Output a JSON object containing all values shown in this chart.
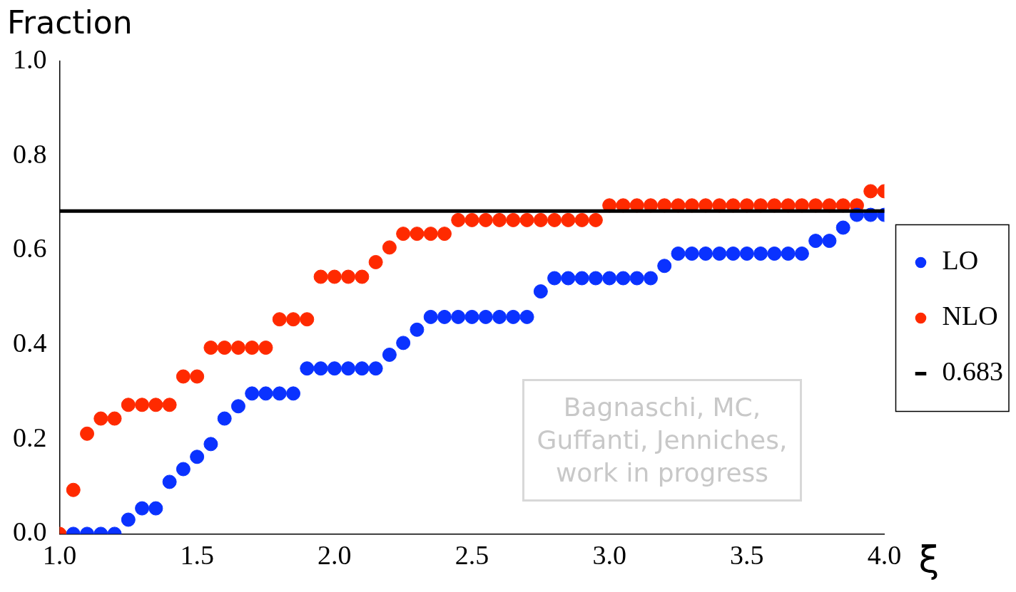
{
  "chart_data": {
    "type": "scatter",
    "xlabel": "ξ",
    "ylabel": "Fraction",
    "x": [
      1.0,
      1.05,
      1.1,
      1.15,
      1.2,
      1.25,
      1.3,
      1.35,
      1.4,
      1.45,
      1.5,
      1.55,
      1.6,
      1.65,
      1.7,
      1.75,
      1.8,
      1.85,
      1.9,
      1.95,
      2.0,
      2.05,
      2.1,
      2.15,
      2.2,
      2.25,
      2.3,
      2.35,
      2.4,
      2.45,
      2.5,
      2.55,
      2.6,
      2.65,
      2.7,
      2.75,
      2.8,
      2.85,
      2.9,
      2.95,
      3.0,
      3.05,
      3.1,
      3.15,
      3.2,
      3.25,
      3.3,
      3.35,
      3.4,
      3.45,
      3.5,
      3.55,
      3.6,
      3.65,
      3.7,
      3.75,
      3.8,
      3.85,
      3.9,
      3.95,
      4.0
    ],
    "series": [
      {
        "name": "LO",
        "color": "#0a32ff",
        "values": [
          null,
          0,
          0,
          0,
          0,
          0.03,
          0.054,
          0.054,
          0.11,
          0.137,
          0.163,
          0.19,
          0.244,
          0.27,
          0.297,
          0.297,
          0.297,
          0.297,
          0.35,
          0.35,
          0.35,
          0.35,
          0.35,
          0.35,
          0.379,
          0.404,
          0.432,
          0.459,
          0.459,
          0.459,
          0.459,
          0.459,
          0.459,
          0.459,
          0.459,
          0.513,
          0.541,
          0.541,
          0.541,
          0.541,
          0.541,
          0.541,
          0.541,
          0.541,
          0.567,
          0.593,
          0.593,
          0.593,
          0.593,
          0.593,
          0.593,
          0.593,
          0.593,
          0.593,
          0.593,
          0.62,
          0.62,
          0.648,
          0.675,
          0.675,
          0.675
        ]
      },
      {
        "name": "NLO",
        "color": "#ff2a00",
        "values": [
          0,
          0.093,
          0.212,
          0.244,
          0.244,
          0.273,
          0.273,
          0.273,
          0.273,
          0.333,
          0.333,
          0.394,
          0.394,
          0.394,
          0.394,
          0.394,
          0.454,
          0.454,
          0.454,
          0.544,
          0.544,
          0.544,
          0.544,
          0.575,
          0.606,
          0.635,
          0.635,
          0.635,
          0.635,
          0.664,
          0.664,
          0.664,
          0.664,
          0.664,
          0.664,
          0.664,
          0.664,
          0.664,
          0.664,
          0.664,
          0.695,
          0.695,
          0.695,
          0.695,
          0.695,
          0.695,
          0.695,
          0.695,
          0.695,
          0.695,
          0.695,
          0.695,
          0.695,
          0.695,
          0.695,
          0.695,
          0.695,
          0.695,
          0.695,
          0.725,
          0.725
        ]
      }
    ],
    "ref_lines": [
      {
        "axis": "y",
        "value": 0.683,
        "label": "0.683",
        "color": "#000000"
      }
    ],
    "xlim": [
      1.0,
      4.0
    ],
    "ylim": [
      0.0,
      1.0
    ],
    "xticks": [
      {
        "value": 1,
        "label": "1.0"
      },
      1.5,
      {
        "value": 2,
        "label": "2.0"
      },
      2.5,
      {
        "value": 3,
        "label": "3.0"
      },
      3.5,
      {
        "value": 4,
        "label": "4.0"
      }
    ],
    "yticks": [
      {
        "value": 0,
        "label": "0.0"
      },
      0.2,
      0.4,
      0.6,
      0.8,
      {
        "value": 1,
        "label": "1.0"
      }
    ],
    "grid": false,
    "legend": "right",
    "marker": "circle",
    "annotations": [
      "Bagnaschi, MC, Guffanti, Jenniches, work in progress"
    ]
  }
}
